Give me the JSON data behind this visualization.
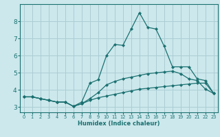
{
  "xlabel": "Humidex (Indice chaleur)",
  "background_color": "#cce8ec",
  "grid_color": "#aacdd4",
  "line_color": "#1a7070",
  "xlim": [
    -0.5,
    23.5
  ],
  "ylim": [
    2.7,
    9.0
  ],
  "yticks": [
    3,
    4,
    5,
    6,
    7,
    8
  ],
  "xticks": [
    0,
    1,
    2,
    3,
    4,
    5,
    6,
    7,
    8,
    9,
    10,
    11,
    12,
    13,
    14,
    15,
    16,
    17,
    18,
    19,
    20,
    21,
    22,
    23
  ],
  "series": [
    {
      "x": [
        0,
        1,
        2,
        3,
        4,
        5,
        6,
        7,
        8,
        9,
        10,
        11,
        12,
        13,
        14,
        15,
        16,
        17,
        18,
        19,
        20,
        21,
        22,
        23
      ],
      "y": [
        3.6,
        3.6,
        3.5,
        3.4,
        3.3,
        3.3,
        3.05,
        3.2,
        3.4,
        3.55,
        3.65,
        3.75,
        3.85,
        3.95,
        4.05,
        4.1,
        4.15,
        4.2,
        4.25,
        4.3,
        4.35,
        4.4,
        4.4,
        3.8
      ]
    },
    {
      "x": [
        0,
        1,
        2,
        3,
        4,
        5,
        6,
        7,
        8,
        9,
        10,
        11,
        12,
        13,
        14,
        15,
        16,
        17,
        18,
        19,
        20,
        21,
        22,
        23
      ],
      "y": [
        3.6,
        3.6,
        3.5,
        3.4,
        3.3,
        3.3,
        3.05,
        3.2,
        3.5,
        3.85,
        4.3,
        4.5,
        4.65,
        4.75,
        4.85,
        4.95,
        5.0,
        5.05,
        5.1,
        4.95,
        4.65,
        4.55,
        4.05,
        3.8
      ]
    },
    {
      "x": [
        0,
        1,
        2,
        3,
        4,
        5,
        6,
        7,
        8,
        9,
        10,
        11,
        12,
        13,
        14,
        15,
        16,
        17,
        18,
        19,
        20,
        21,
        22,
        23
      ],
      "y": [
        3.6,
        3.6,
        3.5,
        3.4,
        3.3,
        3.3,
        3.05,
        3.3,
        4.4,
        4.6,
        6.0,
        6.65,
        6.6,
        7.55,
        8.5,
        7.65,
        7.55,
        6.55,
        5.35,
        5.35,
        5.35,
        4.65,
        4.55,
        3.8
      ]
    }
  ]
}
